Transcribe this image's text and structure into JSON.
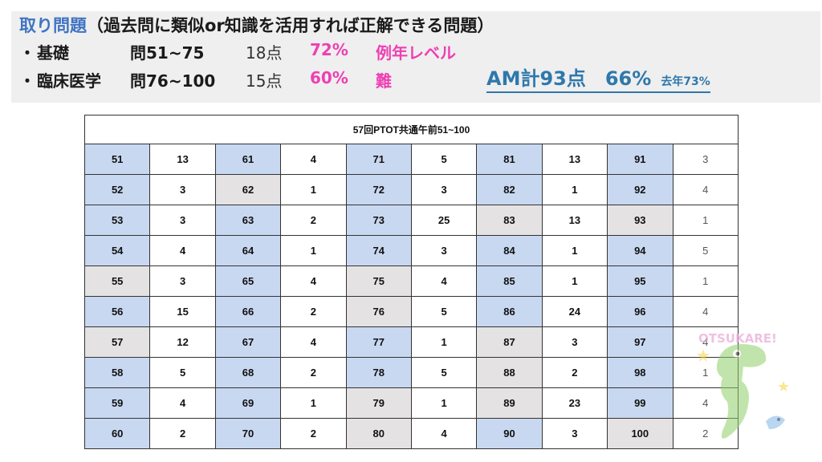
{
  "header": {
    "title_main": "取り問題",
    "title_sub": "（過去問に類似or知識を活用すれば正解できる問題）",
    "rows": [
      {
        "bullet": "・",
        "label": "基礎",
        "range": "問51~75",
        "points": "18点",
        "pct": "72%",
        "note": "例年レベル"
      },
      {
        "bullet": "・",
        "label": "臨床医学",
        "range": "問76~100",
        "points": "15点",
        "pct": "60%",
        "note": "難"
      }
    ],
    "am": {
      "label": "AM計93点",
      "pct": "66%",
      "last_year": "去年73%"
    }
  },
  "table": {
    "title": "57回PTOT共通午前51~100",
    "rows": [
      [
        [
          "51",
          "13"
        ],
        [
          "61",
          "4"
        ],
        [
          "71",
          "5"
        ],
        [
          "81",
          "13"
        ],
        [
          "91",
          "3"
        ]
      ],
      [
        [
          "52",
          "3"
        ],
        [
          "62",
          "1"
        ],
        [
          "72",
          "3"
        ],
        [
          "82",
          "1"
        ],
        [
          "92",
          "4"
        ]
      ],
      [
        [
          "53",
          "3"
        ],
        [
          "63",
          "2"
        ],
        [
          "73",
          "25"
        ],
        [
          "83",
          "13"
        ],
        [
          "93",
          "1"
        ]
      ],
      [
        [
          "54",
          "4"
        ],
        [
          "64",
          "1"
        ],
        [
          "74",
          "3"
        ],
        [
          "84",
          "1"
        ],
        [
          "94",
          "5"
        ]
      ],
      [
        [
          "55",
          "3"
        ],
        [
          "65",
          "4"
        ],
        [
          "75",
          "4"
        ],
        [
          "85",
          "1"
        ],
        [
          "95",
          "1"
        ]
      ],
      [
        [
          "56",
          "15"
        ],
        [
          "66",
          "2"
        ],
        [
          "76",
          "5"
        ],
        [
          "86",
          "24"
        ],
        [
          "96",
          "4"
        ]
      ],
      [
        [
          "57",
          "12"
        ],
        [
          "67",
          "4"
        ],
        [
          "77",
          "1"
        ],
        [
          "87",
          "3"
        ],
        [
          "97",
          "4"
        ]
      ],
      [
        [
          "58",
          "5"
        ],
        [
          "68",
          "2"
        ],
        [
          "78",
          "5"
        ],
        [
          "88",
          "2"
        ],
        [
          "98",
          "1"
        ]
      ],
      [
        [
          "59",
          "4"
        ],
        [
          "69",
          "1"
        ],
        [
          "79",
          "1"
        ],
        [
          "89",
          "23"
        ],
        [
          "99",
          "4"
        ]
      ],
      [
        [
          "60",
          "2"
        ],
        [
          "70",
          "2"
        ],
        [
          "80",
          "4"
        ],
        [
          "90",
          "3"
        ],
        [
          "100",
          "2"
        ]
      ]
    ],
    "highlight": [
      [
        "blue",
        "blue",
        "blue",
        "blue",
        "blue"
      ],
      [
        "blue",
        "gray",
        "blue",
        "blue",
        "blue"
      ],
      [
        "blue",
        "blue",
        "blue",
        "gray",
        "gray"
      ],
      [
        "blue",
        "blue",
        "blue",
        "blue",
        "blue"
      ],
      [
        "gray",
        "blue",
        "gray",
        "blue",
        "blue"
      ],
      [
        "blue",
        "blue",
        "gray",
        "blue",
        "blue"
      ],
      [
        "gray",
        "blue",
        "blue",
        "gray",
        "blue"
      ],
      [
        "blue",
        "blue",
        "blue",
        "gray",
        "blue"
      ],
      [
        "blue",
        "blue",
        "gray",
        "gray",
        "blue"
      ],
      [
        "blue",
        "blue",
        "gray",
        "blue",
        "gray"
      ]
    ]
  },
  "colors": {
    "title_blue": "#3f74c2",
    "pink": "#ee3fb3",
    "am_blue": "#2f78ac",
    "cell_blue": "#c9d8f1",
    "cell_gray": "#e4e2e2"
  },
  "mascot": {
    "icon": "crocodile-mascot-icon",
    "text": "OTSUKARE!"
  }
}
